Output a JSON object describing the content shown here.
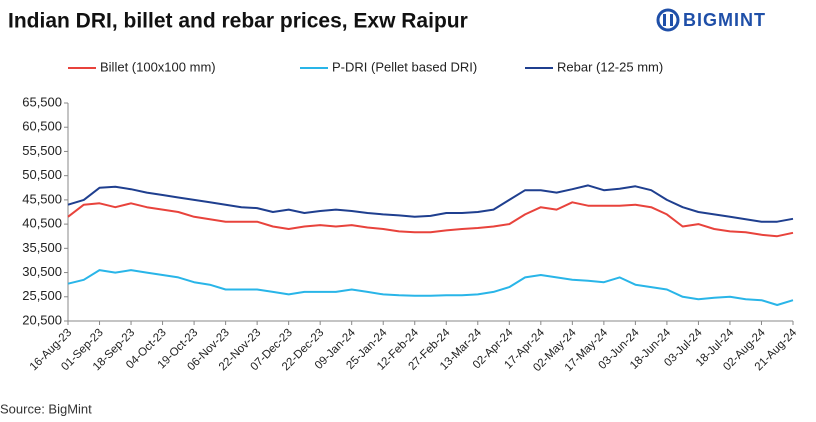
{
  "logo": "BIGMINT",
  "source": "Source: BigMint",
  "chart_data": {
    "type": "line",
    "title": "Indian DRI, billet and rebar prices, Exw Raipur",
    "categories": [
      "16-Aug-23",
      null,
      "01-Sep-23",
      null,
      "18-Sep-23",
      null,
      "04-Oct-23",
      null,
      "19-Oct-23",
      null,
      "06-Nov-23",
      null,
      "22-Nov-23",
      null,
      "07-Dec-23",
      null,
      "22-Dec-23",
      null,
      "09-Jan-24",
      null,
      "25-Jan-24",
      null,
      "12-Feb-24",
      null,
      "27-Feb-24",
      null,
      "13-Mar-24",
      null,
      "02-Apr-24",
      null,
      "17-Apr-24",
      null,
      "02-May-24",
      null,
      "17-May-24",
      null,
      "03-Jun-24",
      null,
      "18-Jun-24",
      null,
      "03-Jul-24",
      null,
      "18-Jul-24",
      null,
      "02-Aug-24",
      null,
      "21-Aug-24"
    ],
    "series": [
      {
        "name": "Billet (100x100 mm)",
        "color": "#e8433c",
        "values": [
          42000,
          44500,
          44800,
          44000,
          44800,
          44000,
          43500,
          43000,
          42000,
          41500,
          41000,
          41000,
          41000,
          40000,
          39500,
          40000,
          40300,
          40000,
          40300,
          39800,
          39500,
          39000,
          38800,
          38800,
          39200,
          39500,
          39700,
          40000,
          40500,
          42500,
          44000,
          43500,
          45000,
          44300,
          44300,
          44300,
          44500,
          44000,
          42500,
          40000,
          40500,
          39500,
          39000,
          38800,
          38300,
          38000,
          38700
        ]
      },
      {
        "name": "P-DRI (Pellet based DRI)",
        "color": "#29b5e8",
        "values": [
          28200,
          29000,
          31000,
          30500,
          31000,
          30500,
          30000,
          29500,
          28500,
          28000,
          27000,
          27000,
          27000,
          26500,
          26000,
          26500,
          26500,
          26500,
          27000,
          26500,
          26000,
          25800,
          25700,
          25700,
          25800,
          25800,
          26000,
          26500,
          27500,
          29500,
          30000,
          29500,
          29000,
          28800,
          28500,
          29500,
          28000,
          27500,
          27000,
          25500,
          25000,
          25300,
          25500,
          25000,
          24800,
          23800,
          24800
        ]
      },
      {
        "name": "Rebar (12-25 mm)",
        "color": "#1f3f8f",
        "values": [
          44500,
          45500,
          48000,
          48200,
          47700,
          47000,
          46500,
          46000,
          45500,
          45000,
          44500,
          44000,
          43800,
          43000,
          43500,
          42800,
          43200,
          43500,
          43200,
          42800,
          42500,
          42300,
          42000,
          42200,
          42800,
          42800,
          43000,
          43500,
          45500,
          47500,
          47500,
          47000,
          47700,
          48500,
          47500,
          47800,
          48300,
          47500,
          45500,
          44000,
          43000,
          42500,
          42000,
          41500,
          41000,
          41000,
          41600
        ]
      }
    ],
    "ylim": [
      20500,
      65500
    ],
    "yticks": [
      {
        "value": 20500,
        "label": "20,500"
      },
      {
        "value": 25500,
        "label": "25,500"
      },
      {
        "value": 30500,
        "label": "30,500"
      },
      {
        "value": 35500,
        "label": "35,500"
      },
      {
        "value": 40500,
        "label": "40,500"
      },
      {
        "value": 45500,
        "label": "45,500"
      },
      {
        "value": 50500,
        "label": "50,500"
      },
      {
        "value": 55500,
        "label": "55,500"
      },
      {
        "value": 60500,
        "label": "60,500"
      },
      {
        "value": 65500,
        "label": "65,500"
      }
    ],
    "grid": false
  }
}
